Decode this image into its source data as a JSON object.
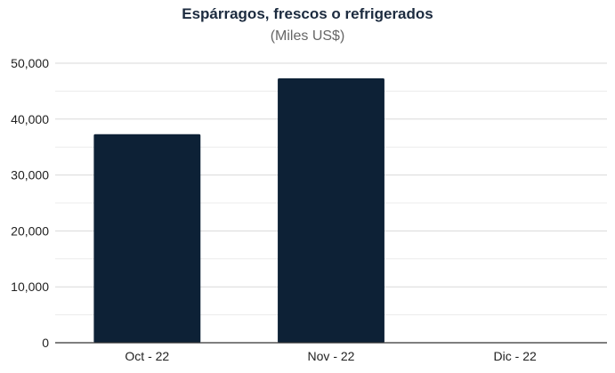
{
  "chart_data": {
    "type": "bar",
    "title": "Espárragos, frescos o refrigerados",
    "subtitle": "(Miles US$)",
    "categories": [
      "Oct - 22",
      "Nov - 22",
      "Dic - 22"
    ],
    "values": [
      37300,
      47300,
      0
    ],
    "ylim": [
      0,
      50000
    ],
    "yticks": [
      0,
      10000,
      20000,
      30000,
      40000,
      50000
    ],
    "ytick_labels": [
      "0",
      "10,000",
      "20,000",
      "30,000",
      "40,000",
      "50,000"
    ],
    "grid": true,
    "bar_color": "#0d2136",
    "grid_color": "#d9d9d9",
    "axis_color": "#333333"
  }
}
